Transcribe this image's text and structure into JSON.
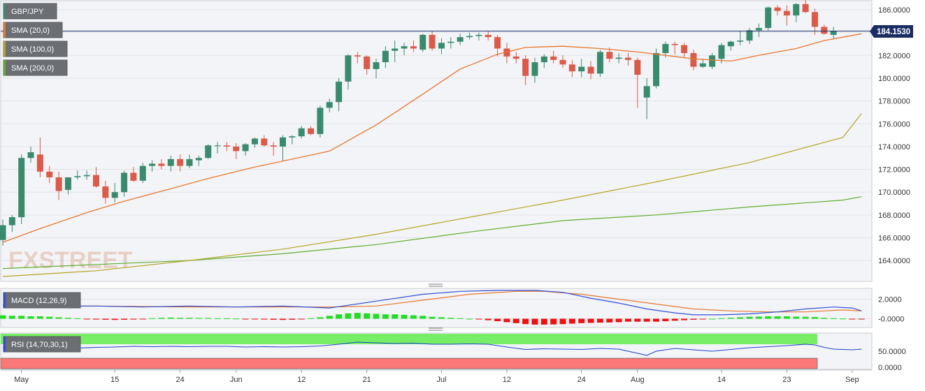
{
  "instrument": {
    "label": "GBP/JPY",
    "current_price": "184.1530"
  },
  "indicators": [
    {
      "label": "SMA (20,0)",
      "color": "#e8772e"
    },
    {
      "label": "SMA (100,0)",
      "color": "#b5a525"
    },
    {
      "label": "SMA (200,0)",
      "color": "#5fad2e"
    }
  ],
  "macd": {
    "label": "MACD (12,26,9)",
    "ticks": [
      "2.0000",
      "-0.0000"
    ]
  },
  "rsi": {
    "label": "RSI (14,70,30,1)",
    "ticks": [
      "50.0000",
      "0.0000"
    ]
  },
  "watermark": "FXSTREET",
  "colors": {
    "up": "#3a8a6e",
    "down": "#dc5a49",
    "sma20": "#e8772e",
    "sma100": "#b5a525",
    "sma200": "#5fad2e",
    "macd_line": "#2f4fd6",
    "signal_line": "#e8772e",
    "hist_up": "#22dd22",
    "hist_down": "#ee1111",
    "rsi_line": "#1f44cc",
    "overbought": "#77ee66",
    "oversold": "#fa7878"
  },
  "chart_data": {
    "type": "candlestick",
    "y_ticks": [
      "164.0000",
      "166.0000",
      "168.0000",
      "170.0000",
      "172.0000",
      "174.0000",
      "176.0000",
      "178.0000",
      "180.0000",
      "182.0000",
      "184.0000",
      "186.0000"
    ],
    "ylim": [
      162.0,
      187.0
    ],
    "x_labels": [
      {
        "label": "May",
        "date": "2023-05-01"
      },
      {
        "label": "15",
        "date": "2023-05-15"
      },
      {
        "label": "24",
        "date": "2023-05-24"
      },
      {
        "label": "Jun",
        "date": "2023-06-01"
      },
      {
        "label": "12",
        "date": "2023-06-12"
      },
      {
        "label": "21",
        "date": "2023-06-21"
      },
      {
        "label": "Jul",
        "date": "2023-07-03"
      },
      {
        "label": "12",
        "date": "2023-07-12"
      },
      {
        "label": "24",
        "date": "2023-07-24"
      },
      {
        "label": "Aug",
        "date": "2023-08-01"
      },
      {
        "label": "14",
        "date": "2023-08-14"
      },
      {
        "label": "23",
        "date": "2023-08-23"
      },
      {
        "label": "Sep",
        "date": "2023-09-01"
      }
    ],
    "candles": [
      [
        165.8,
        167.6,
        165.3,
        167.1
      ],
      [
        167.1,
        168.0,
        166.5,
        167.8
      ],
      [
        167.8,
        173.3,
        167.2,
        173.0
      ],
      [
        173.0,
        174.0,
        172.6,
        173.5
      ],
      [
        173.3,
        174.8,
        171.3,
        171.8
      ],
      [
        171.8,
        172.3,
        170.8,
        171.3
      ],
      [
        171.3,
        171.8,
        169.3,
        170.1
      ],
      [
        170.2,
        171.3,
        169.8,
        171.3
      ],
      [
        171.3,
        171.9,
        171.1,
        171.4
      ],
      [
        171.4,
        171.9,
        171.1,
        171.5
      ],
      [
        171.5,
        172.2,
        170.4,
        170.5
      ],
      [
        170.5,
        171.0,
        169.0,
        169.5
      ],
      [
        169.5,
        170.8,
        169.1,
        170.0
      ],
      [
        170.0,
        171.9,
        169.6,
        171.7
      ],
      [
        171.7,
        172.2,
        170.9,
        171.0
      ],
      [
        171.0,
        172.6,
        170.8,
        172.3
      ],
      [
        172.3,
        172.8,
        171.8,
        172.5
      ],
      [
        172.5,
        172.9,
        172.0,
        172.3
      ],
      [
        172.3,
        173.2,
        171.8,
        172.9
      ],
      [
        172.9,
        173.3,
        171.8,
        172.3
      ],
      [
        172.3,
        173.3,
        172.1,
        172.9
      ],
      [
        172.8,
        173.2,
        172.3,
        173.0
      ],
      [
        173.0,
        174.2,
        172.9,
        174.1
      ],
      [
        174.1,
        174.4,
        173.4,
        174.1
      ],
      [
        174.1,
        174.4,
        173.6,
        174.0
      ],
      [
        174.0,
        174.3,
        172.9,
        173.6
      ],
      [
        173.6,
        174.3,
        173.2,
        174.2
      ],
      [
        174.2,
        174.8,
        173.9,
        174.7
      ],
      [
        174.7,
        175.0,
        174.0,
        174.1
      ],
      [
        174.1,
        174.4,
        173.2,
        174.0
      ],
      [
        174.0,
        175.0,
        172.7,
        174.8
      ],
      [
        174.8,
        175.0,
        174.2,
        174.9
      ],
      [
        174.9,
        175.8,
        174.7,
        175.6
      ],
      [
        175.6,
        175.8,
        175.0,
        175.1
      ],
      [
        175.1,
        177.6,
        174.8,
        177.4
      ],
      [
        177.4,
        178.2,
        177.0,
        177.9
      ],
      [
        177.9,
        180.0,
        177.1,
        179.7
      ],
      [
        179.7,
        182.1,
        179.0,
        182.0
      ],
      [
        182.0,
        182.3,
        181.3,
        181.9
      ],
      [
        181.9,
        182.0,
        180.3,
        180.8
      ],
      [
        180.8,
        181.7,
        180.0,
        181.4
      ],
      [
        181.4,
        182.8,
        180.9,
        182.4
      ],
      [
        182.4,
        183.3,
        181.4,
        182.6
      ],
      [
        182.6,
        183.1,
        182.0,
        182.8
      ],
      [
        182.8,
        183.3,
        182.3,
        182.6
      ],
      [
        182.5,
        183.9,
        182.3,
        183.8
      ],
      [
        183.8,
        184.1,
        182.4,
        182.6
      ],
      [
        182.6,
        183.5,
        182.1,
        183.1
      ],
      [
        183.1,
        183.6,
        182.6,
        183.2
      ],
      [
        183.2,
        183.9,
        182.9,
        183.6
      ],
      [
        183.6,
        184.0,
        183.4,
        183.7
      ],
      [
        183.7,
        184.0,
        183.3,
        183.8
      ],
      [
        183.8,
        184.1,
        183.3,
        183.6
      ],
      [
        183.6,
        183.8,
        181.9,
        182.6
      ],
      [
        182.6,
        183.1,
        181.3,
        181.9
      ],
      [
        181.9,
        182.3,
        181.3,
        181.7
      ],
      [
        181.7,
        182.0,
        179.4,
        180.2
      ],
      [
        180.2,
        181.8,
        179.6,
        181.4
      ],
      [
        181.4,
        182.1,
        180.9,
        181.9
      ],
      [
        181.9,
        182.4,
        181.3,
        181.6
      ],
      [
        181.6,
        182.0,
        180.9,
        181.2
      ],
      [
        181.2,
        181.6,
        180.1,
        180.6
      ],
      [
        180.6,
        181.7,
        180.1,
        181.0
      ],
      [
        181.0,
        181.5,
        179.9,
        180.4
      ],
      [
        180.4,
        182.5,
        180.1,
        182.3
      ],
      [
        182.3,
        182.7,
        181.4,
        181.7
      ],
      [
        181.7,
        182.2,
        181.3,
        181.8
      ],
      [
        181.8,
        182.2,
        181.1,
        181.6
      ],
      [
        181.6,
        181.8,
        177.4,
        180.3
      ],
      [
        178.3,
        180.0,
        176.4,
        179.3
      ],
      [
        179.3,
        182.6,
        179.1,
        182.2
      ],
      [
        182.2,
        183.2,
        181.8,
        183.0
      ],
      [
        183.0,
        183.2,
        182.1,
        182.9
      ],
      [
        182.9,
        183.1,
        181.8,
        182.2
      ],
      [
        182.2,
        182.5,
        180.7,
        181.0
      ],
      [
        181.0,
        181.7,
        180.9,
        181.3
      ],
      [
        181.0,
        182.2,
        180.8,
        182.0
      ],
      [
        181.7,
        183.1,
        181.3,
        182.9
      ],
      [
        182.8,
        183.3,
        182.4,
        183.2
      ],
      [
        183.2,
        184.1,
        182.9,
        183.3
      ],
      [
        183.3,
        184.4,
        183.0,
        184.2
      ],
      [
        184.2,
        184.8,
        183.6,
        184.4
      ],
      [
        184.4,
        186.3,
        184.2,
        186.2
      ],
      [
        186.2,
        186.4,
        185.5,
        185.9
      ],
      [
        185.9,
        186.4,
        184.6,
        185.5
      ],
      [
        185.5,
        186.6,
        184.9,
        186.5
      ],
      [
        186.5,
        186.9,
        185.7,
        185.8
      ],
      [
        185.8,
        186.1,
        183.8,
        184.5
      ],
      [
        184.5,
        184.7,
        183.8,
        183.9
      ],
      [
        183.8,
        184.5,
        183.4,
        184.15
      ]
    ],
    "sma20": [
      [
        0,
        165.6
      ],
      [
        4,
        166.8
      ],
      [
        9,
        168.2
      ],
      [
        13,
        169.2
      ],
      [
        18,
        170.3
      ],
      [
        22,
        171.2
      ],
      [
        27,
        172.2
      ],
      [
        31,
        172.9
      ],
      [
        35,
        173.6
      ],
      [
        40,
        175.9
      ],
      [
        45,
        178.6
      ],
      [
        49,
        180.8
      ],
      [
        53,
        182.1
      ],
      [
        56,
        182.7
      ],
      [
        60,
        182.8
      ],
      [
        64,
        182.6
      ],
      [
        68,
        182.3
      ],
      [
        70,
        182.1
      ],
      [
        74,
        181.7
      ],
      [
        78,
        181.5
      ],
      [
        81,
        182.0
      ],
      [
        85,
        182.6
      ],
      [
        88,
        183.3
      ],
      [
        90,
        183.6
      ],
      [
        92,
        183.9
      ]
    ],
    "sma100": [
      [
        0,
        162.6
      ],
      [
        10,
        163.1
      ],
      [
        20,
        164.0
      ],
      [
        30,
        165.0
      ],
      [
        40,
        166.3
      ],
      [
        50,
        167.8
      ],
      [
        60,
        169.3
      ],
      [
        70,
        170.9
      ],
      [
        80,
        172.6
      ],
      [
        90,
        174.8
      ],
      [
        92,
        176.9
      ]
    ],
    "sma200": [
      [
        0,
        163.3
      ],
      [
        20,
        164.0
      ],
      [
        30,
        164.6
      ],
      [
        40,
        165.4
      ],
      [
        50,
        166.5
      ],
      [
        60,
        167.5
      ],
      [
        70,
        168.0
      ],
      [
        80,
        168.7
      ],
      [
        90,
        169.3
      ],
      [
        92,
        169.6
      ]
    ],
    "macd_line": [
      [
        0,
        1.4
      ],
      [
        5,
        1.3
      ],
      [
        10,
        1.3
      ],
      [
        15,
        1.2
      ],
      [
        20,
        1.3
      ],
      [
        25,
        1.2
      ],
      [
        30,
        1.3
      ],
      [
        35,
        1.1
      ],
      [
        40,
        1.8
      ],
      [
        45,
        2.5
      ],
      [
        49,
        2.8
      ],
      [
        53,
        2.9
      ],
      [
        57,
        2.9
      ],
      [
        60,
        2.7
      ],
      [
        63,
        2.1
      ],
      [
        66,
        1.6
      ],
      [
        69,
        1.0
      ],
      [
        72,
        0.6
      ],
      [
        74,
        0.4
      ],
      [
        77,
        0.4
      ],
      [
        80,
        0.5
      ],
      [
        83,
        0.7
      ],
      [
        86,
        1.0
      ],
      [
        89,
        1.2
      ],
      [
        91,
        1.1
      ],
      [
        92,
        0.8
      ]
    ],
    "signal_line": [
      [
        0,
        1.3
      ],
      [
        10,
        1.3
      ],
      [
        20,
        1.2
      ],
      [
        30,
        1.2
      ],
      [
        35,
        1.2
      ],
      [
        40,
        1.3
      ],
      [
        45,
        1.9
      ],
      [
        50,
        2.5
      ],
      [
        55,
        2.8
      ],
      [
        58,
        2.8
      ],
      [
        62,
        2.5
      ],
      [
        66,
        2.0
      ],
      [
        70,
        1.5
      ],
      [
        74,
        1.0
      ],
      [
        78,
        0.8
      ],
      [
        82,
        0.7
      ],
      [
        86,
        0.7
      ],
      [
        90,
        0.9
      ],
      [
        92,
        0.8
      ]
    ],
    "macd_hist": [
      0.35,
      0.3,
      0.3,
      0.25,
      0.25,
      0.2,
      0.15,
      0.1,
      0.05,
      -0.05,
      -0.08,
      -0.1,
      -0.12,
      -0.1,
      -0.08,
      -0.05,
      0.05,
      0.1,
      0.12,
      0.1,
      0.1,
      0.08,
      0.08,
      0.05,
      0.05,
      0.02,
      -0.02,
      -0.05,
      -0.08,
      -0.1,
      -0.12,
      -0.1,
      -0.05,
      0.05,
      0.15,
      0.3,
      0.45,
      0.55,
      0.6,
      0.55,
      0.5,
      0.45,
      0.45,
      0.4,
      0.35,
      0.3,
      0.2,
      0.15,
      0.1,
      0.05,
      0.0,
      -0.05,
      -0.15,
      -0.25,
      -0.35,
      -0.45,
      -0.55,
      -0.6,
      -0.6,
      -0.58,
      -0.55,
      -0.5,
      -0.45,
      -0.42,
      -0.4,
      -0.38,
      -0.35,
      -0.3,
      -0.3,
      -0.3,
      -0.3,
      -0.25,
      -0.2,
      -0.15,
      -0.1,
      -0.05,
      0.0,
      0.05,
      0.1,
      0.15,
      0.2,
      0.22,
      0.25,
      0.25,
      0.25,
      0.22,
      0.2,
      0.18,
      0.1,
      0.05,
      0.02,
      -0.02,
      -0.05
    ],
    "macd_ylim": [
      -0.8,
      3.5
    ],
    "rsi_line": [
      [
        0,
        60
      ],
      [
        2,
        65
      ],
      [
        4,
        66
      ],
      [
        6,
        63
      ],
      [
        8,
        59
      ],
      [
        10,
        61
      ],
      [
        12,
        62
      ],
      [
        14,
        64
      ],
      [
        16,
        63
      ],
      [
        18,
        64
      ],
      [
        20,
        63
      ],
      [
        22,
        64
      ],
      [
        24,
        64
      ],
      [
        26,
        62
      ],
      [
        28,
        63
      ],
      [
        30,
        62
      ],
      [
        32,
        63
      ],
      [
        34,
        65
      ],
      [
        36,
        70
      ],
      [
        38,
        76
      ],
      [
        40,
        74
      ],
      [
        42,
        72
      ],
      [
        44,
        73
      ],
      [
        46,
        70
      ],
      [
        48,
        70
      ],
      [
        50,
        71
      ],
      [
        52,
        70
      ],
      [
        54,
        62
      ],
      [
        56,
        55
      ],
      [
        58,
        57
      ],
      [
        60,
        56
      ],
      [
        62,
        55
      ],
      [
        64,
        58
      ],
      [
        66,
        56
      ],
      [
        68,
        44
      ],
      [
        69,
        38
      ],
      [
        70,
        50
      ],
      [
        72,
        58
      ],
      [
        74,
        54
      ],
      [
        76,
        50
      ],
      [
        78,
        55
      ],
      [
        80,
        60
      ],
      [
        82,
        63
      ],
      [
        84,
        66
      ],
      [
        86,
        70
      ],
      [
        87,
        68
      ],
      [
        88,
        61
      ],
      [
        89,
        56
      ],
      [
        90,
        55
      ],
      [
        91,
        54
      ],
      [
        92,
        56
      ]
    ],
    "rsi_ylim": [
      0,
      100
    ],
    "rsi_levels": [
      70,
      30
    ]
  }
}
